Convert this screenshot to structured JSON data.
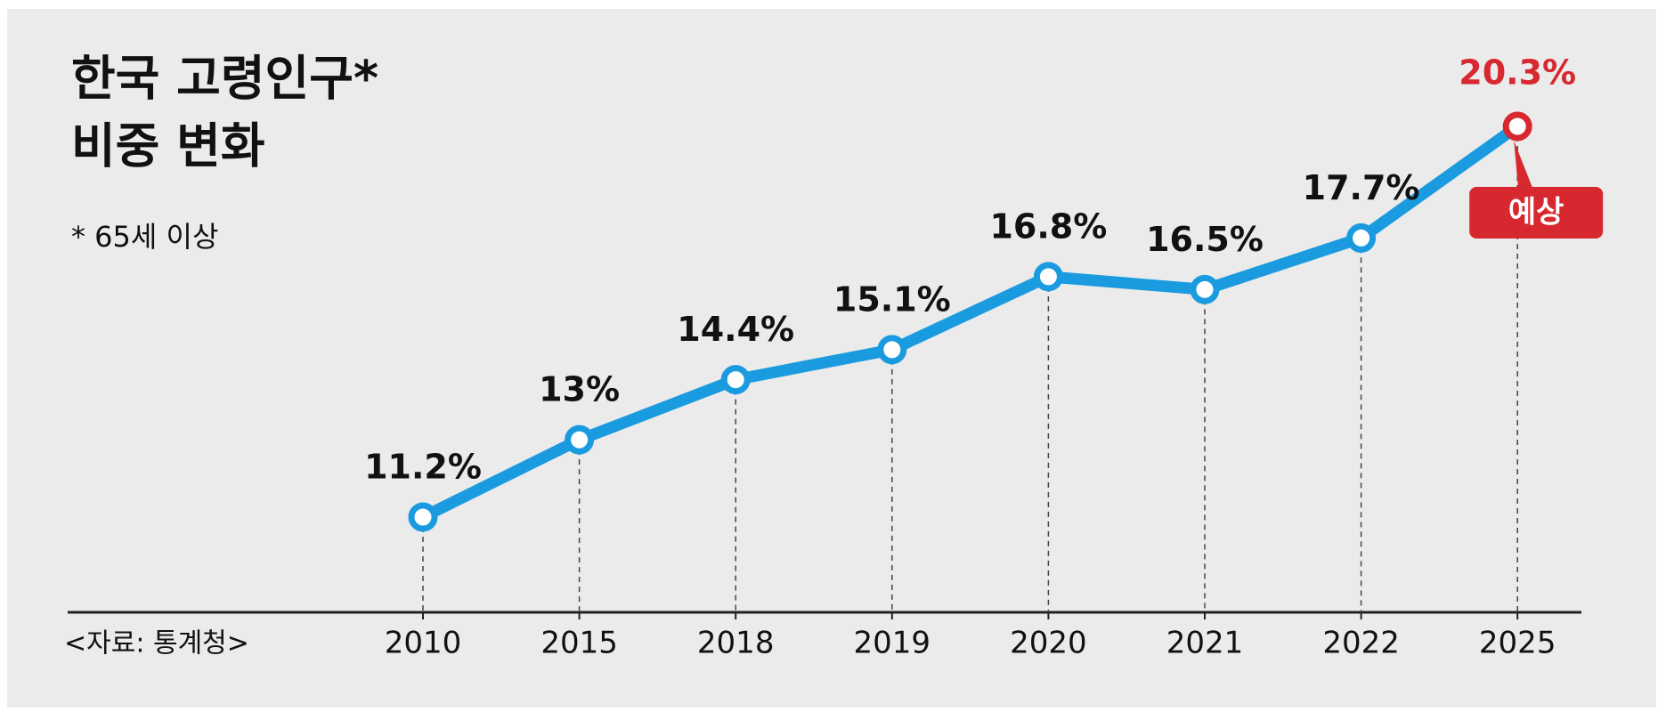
{
  "chart_data": {
    "type": "line",
    "title": [
      "한국 고령인구*",
      "비중 변화"
    ],
    "subtitle": "* 65세 이상",
    "source": "<자료: 통계청>",
    "categories": [
      "2010",
      "2015",
      "2018",
      "2019",
      "2020",
      "2021",
      "2022",
      "2025"
    ],
    "series": [
      {
        "color": "#1a9be0",
        "values": [
          11.2,
          13,
          14.4,
          15.1,
          16.8,
          16.5,
          17.7,
          20.3
        ],
        "value_labels": [
          "11.2%",
          "13%",
          "14.4%",
          "15.1%",
          "16.8%",
          "16.5%",
          "17.7%",
          "20.3%"
        ]
      }
    ],
    "annotation": "예상",
    "highlight_color": "#d7282f"
  }
}
